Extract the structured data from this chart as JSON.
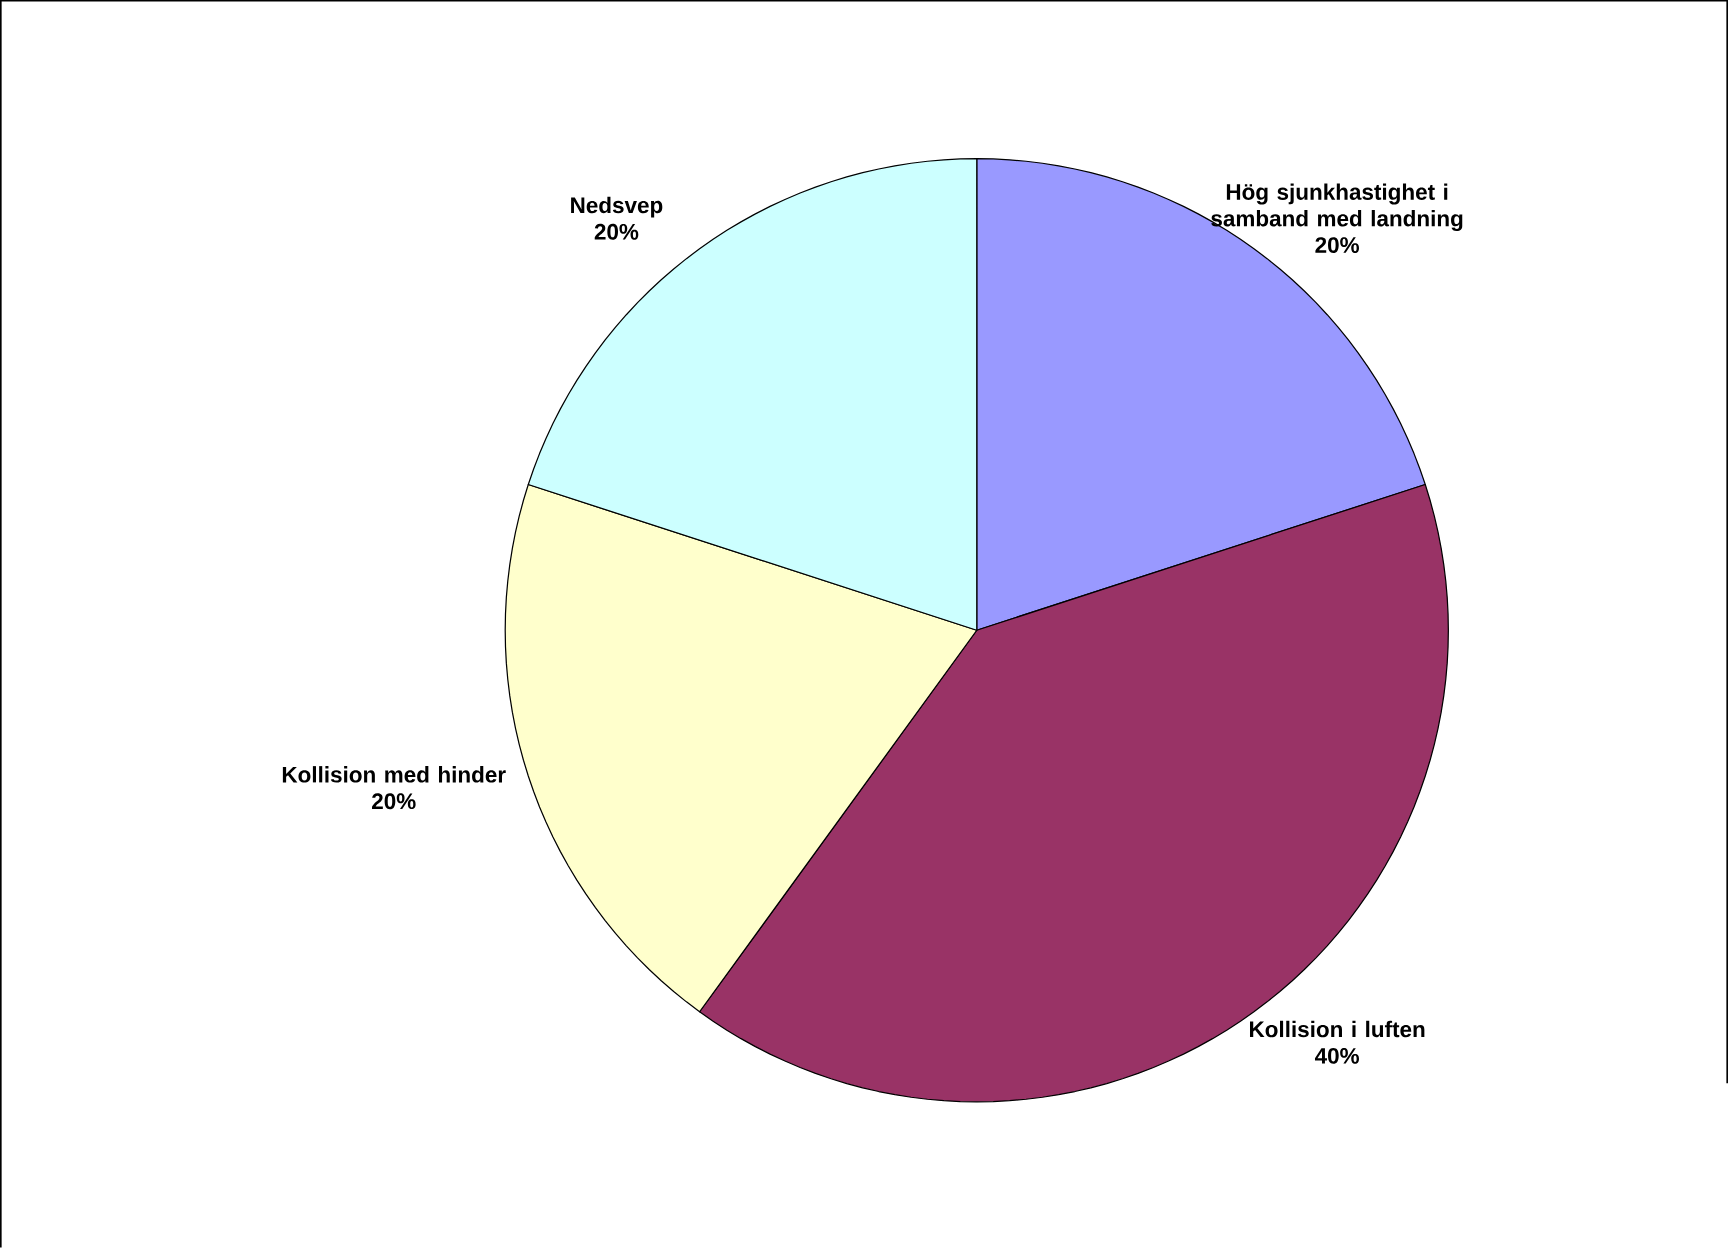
{
  "chart_data": {
    "type": "pie",
    "categories": [
      "Hög sjunkhastighet i samband med landning",
      "Kollision i luften",
      "Kollision med hinder",
      "Nedsvep"
    ],
    "values": [
      20,
      40,
      20,
      20
    ],
    "value_labels": [
      "20%",
      "40%",
      "20%",
      "20%"
    ],
    "colors": [
      "#9999ff",
      "#993366",
      "#ffffcc",
      "#ccffff"
    ]
  }
}
